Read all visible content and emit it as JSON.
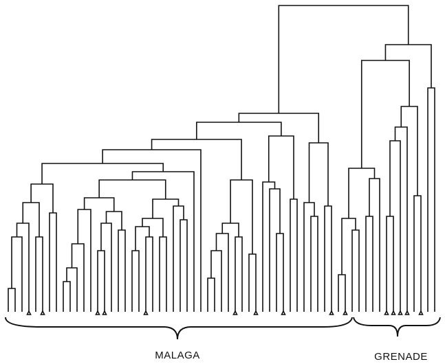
{
  "labels": {
    "left": "MALAGA",
    "right": "GRENADE"
  }
}
